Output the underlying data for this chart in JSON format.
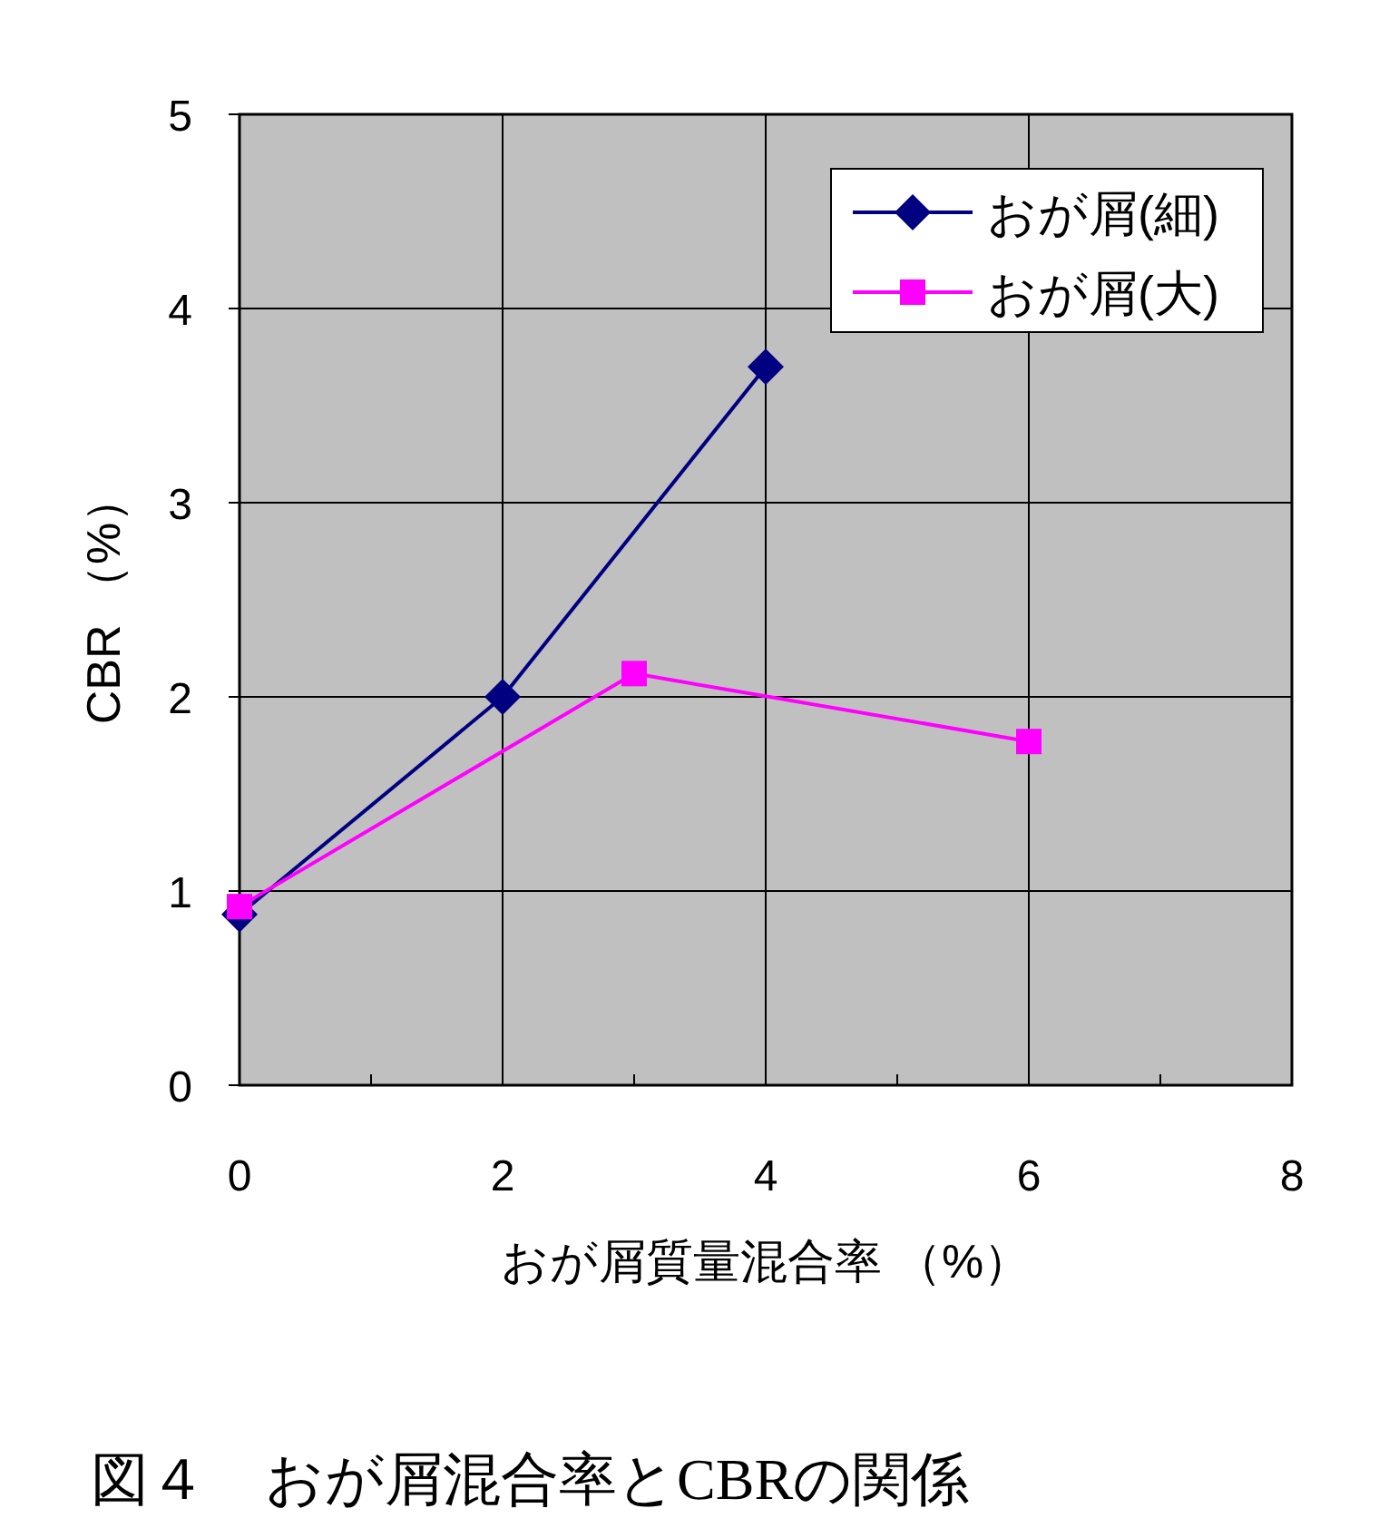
{
  "chart_data": {
    "type": "line",
    "title": "図４　おが屑混合率とCBRの関係",
    "xlabel": "おが屑質量混合率 （%）",
    "ylabel": "CBR （%）",
    "xlim": [
      0,
      8
    ],
    "xticks": [
      0,
      {
        "value": 1,
        "label": null
      },
      2,
      {
        "value": 3,
        "label": null
      },
      4,
      {
        "value": 5,
        "label": null
      },
      6,
      {
        "value": 7,
        "label": null
      },
      8
    ],
    "ylim": [
      0,
      5
    ],
    "yticks": [
      0,
      1,
      2,
      3,
      4,
      5
    ],
    "grid": true,
    "legend": "top right",
    "line_style": "solid",
    "series": [
      {
        "name": "おが屑(細)",
        "color": "#000080",
        "marker": "diamond",
        "x": [
          0,
          2,
          4
        ],
        "values": [
          0.88,
          2.0,
          3.7
        ]
      },
      {
        "name": "おが屑(大)",
        "color": "#ff00ff",
        "marker": "square",
        "x": [
          0,
          3,
          6
        ],
        "values": [
          0.92,
          2.12,
          1.77
        ]
      }
    ]
  }
}
